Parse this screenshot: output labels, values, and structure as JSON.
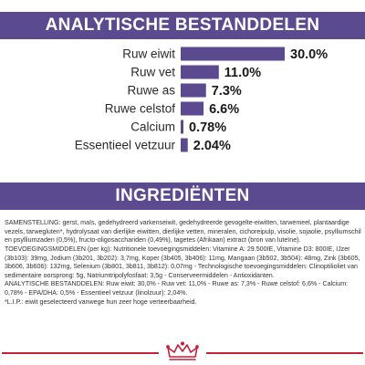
{
  "header": {
    "analysis_title": "ANALYTISCHE BESTANDDELEN"
  },
  "chart_data": {
    "type": "bar",
    "orientation": "horizontal",
    "categories": [
      "Ruw eiwit",
      "Ruw vet",
      "Ruwe as",
      "Ruwe celstof",
      "Calcium",
      "Essentieel vetzuur"
    ],
    "values": [
      30.0,
      11.0,
      7.3,
      6.6,
      0.78,
      2.04
    ],
    "value_labels": [
      "30.0%",
      "11.0%",
      "7.3%",
      "6.6%",
      "0.78%",
      "2.04%"
    ],
    "grid": false,
    "bar_color": "#5b4a8f"
  },
  "ingredients": {
    "title": "INGREDIËNTEN",
    "paragraphs": [
      "SAMENSTELLING: gerst, maïs, gedehydreerd varkenseiwit, gedehydreerde gevogelte-eiwitten, tarwemeel, plantaardige vezels, tarwegluten*, hydrolysaat van dierlijke eiwitten, dierlijke vetten, mineralen, cichoreipulp, visolie, sojaolie, psylliumschil en psylliumzaden (0,5%), fructo-oligosacchariden (0,49%), tagetes (Afrikaan) extract (bron van luteïne).",
      "TOEVOEGINGSMIDDELEN (per kg): Nutritionele toevoegingsmiddelen: Vitamine A: 29.500IE, Vitamine D3: 800IE, IJzer (3b103): 39mg, Jodium (3b201, 3b202): 3,7mg, Koper (3b405, 3b406): 11mg, Mangaan (3b502, 3b504): 48mg, Zink (3b605, 3b606, 3b606): 132mg, Selenium (3b801, 3b811, 3b812): 0,07mg - Technologische toevoegingsmiddelen: Clinoptilioliet van sedimentaire oorsprong: 5g, Natriumtripolyfosfaat: 3,5g - Conserveermiddelen - Antioxidanten.",
      "ANALYTISCHE BESTANDDELEN: Ruw eiwit: 30,0% - Ruw vet: 11,0% - Ruwe as: 7,3% - Ruwe celstof: 6,6% - Calcium: 0,78% - EPA/DHA: 0,5% - Essentieel vetzuur (linolzuur): 2,04%.",
      "*L.I.P.: eiwit geselecteerd vanwege hun zeer hoge verteerbaarheid."
    ]
  },
  "brand": {
    "logo": "royal-canin-crown-logo"
  }
}
